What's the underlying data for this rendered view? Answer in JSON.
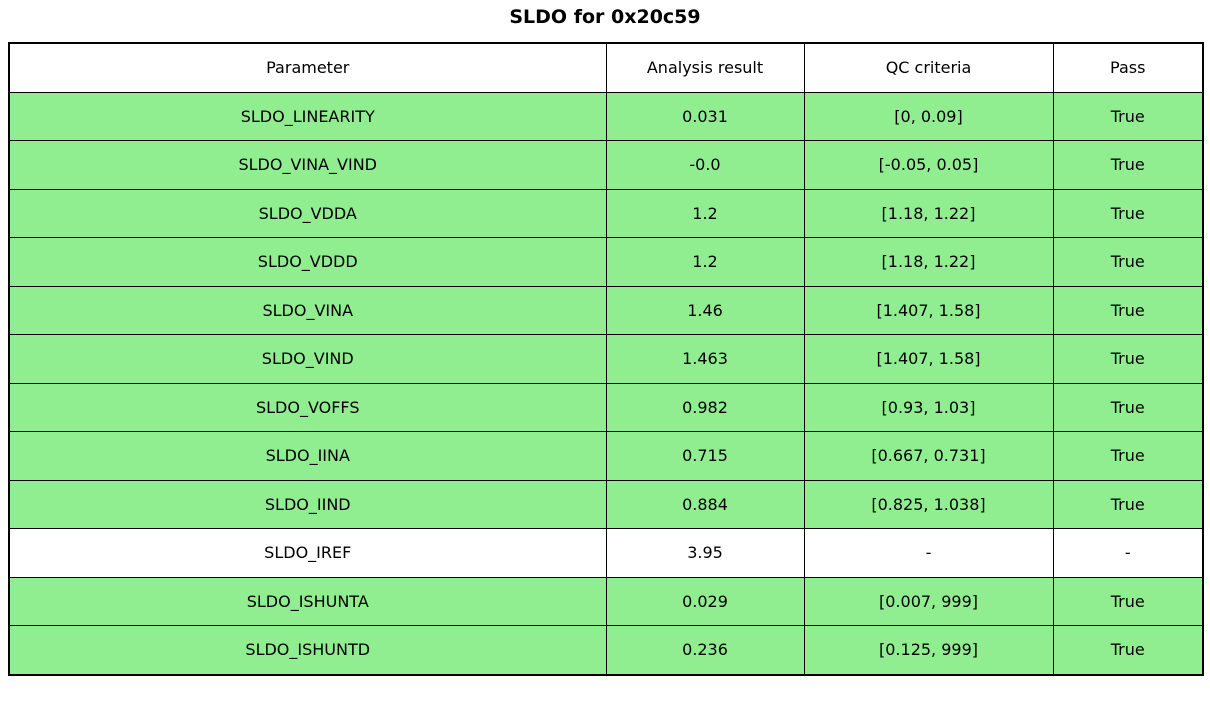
{
  "title": "SLDO for 0x20c59",
  "colors": {
    "pass_green": "#90EE90",
    "neutral_white": "#ffffff",
    "border_black": "#000000",
    "text_black": "#000000"
  },
  "chart_data": {
    "type": "table",
    "title": "SLDO for 0x20c59",
    "columns": [
      "Parameter",
      "Analysis result",
      "QC criteria",
      "Pass"
    ],
    "rows": [
      {
        "parameter": "SLDO_LINEARITY",
        "analysis_result": "0.031",
        "qc_criteria": "[0, 0.09]",
        "pass": "True",
        "status": "pass"
      },
      {
        "parameter": "SLDO_VINA_VIND",
        "analysis_result": "-0.0",
        "qc_criteria": "[-0.05, 0.05]",
        "pass": "True",
        "status": "pass"
      },
      {
        "parameter": "SLDO_VDDA",
        "analysis_result": "1.2",
        "qc_criteria": "[1.18, 1.22]",
        "pass": "True",
        "status": "pass"
      },
      {
        "parameter": "SLDO_VDDD",
        "analysis_result": "1.2",
        "qc_criteria": "[1.18, 1.22]",
        "pass": "True",
        "status": "pass"
      },
      {
        "parameter": "SLDO_VINA",
        "analysis_result": "1.46",
        "qc_criteria": "[1.407, 1.58]",
        "pass": "True",
        "status": "pass"
      },
      {
        "parameter": "SLDO_VIND",
        "analysis_result": "1.463",
        "qc_criteria": "[1.407, 1.58]",
        "pass": "True",
        "status": "pass"
      },
      {
        "parameter": "SLDO_VOFFS",
        "analysis_result": "0.982",
        "qc_criteria": "[0.93, 1.03]",
        "pass": "True",
        "status": "pass"
      },
      {
        "parameter": "SLDO_IINA",
        "analysis_result": "0.715",
        "qc_criteria": "[0.667, 0.731]",
        "pass": "True",
        "status": "pass"
      },
      {
        "parameter": "SLDO_IIND",
        "analysis_result": "0.884",
        "qc_criteria": "[0.825, 1.038]",
        "pass": "True",
        "status": "pass"
      },
      {
        "parameter": "SLDO_IREF",
        "analysis_result": "3.95",
        "qc_criteria": "-",
        "pass": "-",
        "status": "neutral"
      },
      {
        "parameter": "SLDO_ISHUNTA",
        "analysis_result": "0.029",
        "qc_criteria": "[0.007, 999]",
        "pass": "True",
        "status": "pass"
      },
      {
        "parameter": "SLDO_ISHUNTD",
        "analysis_result": "0.236",
        "qc_criteria": "[0.125, 999]",
        "pass": "True",
        "status": "pass"
      }
    ]
  }
}
